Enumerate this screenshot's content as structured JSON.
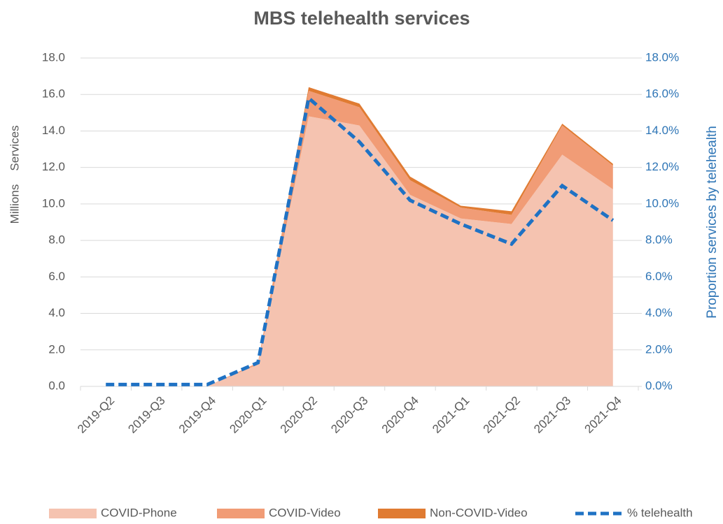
{
  "chart_data": {
    "type": "stacked-area-line",
    "title": "MBS telehealth services",
    "y_label": "Services",
    "y_unit": "Millions",
    "y2_label": "Proportion services by telehealth",
    "categories": [
      "2019-Q2",
      "2019-Q3",
      "2019-Q4",
      "2020-Q1",
      "2020-Q2",
      "2020-Q3",
      "2020-Q4",
      "2021-Q1",
      "2021-Q2",
      "2021-Q3",
      "2021-Q4"
    ],
    "series": [
      {
        "name": "COVID-Phone",
        "color": "#f5c3b0",
        "values": [
          0,
          0,
          0,
          1.2,
          14.8,
          14.3,
          10.5,
          9.2,
          8.9,
          12.7,
          10.8
        ]
      },
      {
        "name": "COVID-Video",
        "color": "#f19c76",
        "values": [
          0,
          0,
          0,
          0.1,
          1.4,
          1.0,
          0.8,
          0.6,
          0.5,
          1.6,
          1.3
        ]
      },
      {
        "name": "Non-COVID-Video",
        "color": "#e07b32",
        "values": [
          0,
          0,
          0,
          0,
          0.2,
          0.2,
          0.2,
          0.1,
          0.2,
          0.1,
          0.1
        ]
      },
      {
        "name": "% telehealth",
        "color": "#1f72c4",
        "axis": "y2",
        "dashed": true,
        "values": [
          0.1,
          0.1,
          0.1,
          1.3,
          15.8,
          13.4,
          10.2,
          8.9,
          7.8,
          11.0,
          9.1
        ]
      }
    ],
    "ylim": [
      0,
      18
    ],
    "yticks": [
      {
        "value": 0,
        "label": "0.0"
      },
      {
        "value": 2,
        "label": "2.0"
      },
      {
        "value": 4,
        "label": "4.0"
      },
      {
        "value": 6,
        "label": "6.0"
      },
      {
        "value": 8,
        "label": "8.0"
      },
      {
        "value": 10,
        "label": "10.0"
      },
      {
        "value": 12,
        "label": "12.0"
      },
      {
        "value": 14,
        "label": "14.0"
      },
      {
        "value": 16,
        "label": "16.0"
      },
      {
        "value": 18,
        "label": "18.0"
      }
    ],
    "y2lim": [
      0,
      18
    ],
    "y2ticks": [
      {
        "value": 0,
        "label": "0.0%"
      },
      {
        "value": 2,
        "label": "2.0%"
      },
      {
        "value": 4,
        "label": "4.0%"
      },
      {
        "value": 6,
        "label": "6.0%"
      },
      {
        "value": 8,
        "label": "8.0%"
      },
      {
        "value": 10,
        "label": "10.0%"
      },
      {
        "value": 12,
        "label": "12.0%"
      },
      {
        "value": 14,
        "label": "14.0%"
      },
      {
        "value": 16,
        "label": "16.0%"
      },
      {
        "value": 18,
        "label": "18.0%"
      }
    ],
    "grid": true,
    "legend": "bottom"
  }
}
